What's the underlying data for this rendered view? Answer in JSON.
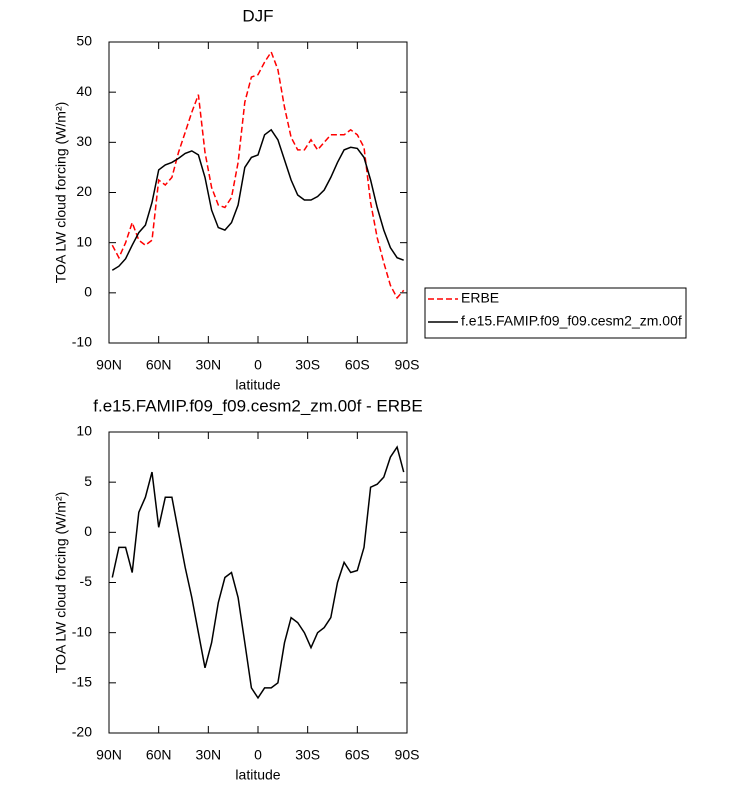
{
  "chart_data": [
    {
      "type": "line",
      "title": "DJF",
      "xlabel": "latitude",
      "ylabel": "TOA LW cloud forcing (W/m²)",
      "x": [
        88,
        84,
        80,
        76,
        72,
        68,
        64,
        60,
        56,
        52,
        48,
        44,
        40,
        36,
        32,
        28,
        24,
        20,
        16,
        12,
        8,
        4,
        0,
        -4,
        -8,
        -12,
        -16,
        -20,
        -24,
        -28,
        -32,
        -36,
        -40,
        -44,
        -48,
        -52,
        -56,
        -60,
        -64,
        -68,
        -72,
        -76,
        -80,
        -84,
        -88
      ],
      "xlim": [
        90,
        -90
      ],
      "xticks": [
        {
          "value": 90,
          "label": "90N"
        },
        {
          "value": 60,
          "label": "60N"
        },
        {
          "value": 30,
          "label": "30N"
        },
        0,
        {
          "value": -30,
          "label": "30S"
        },
        {
          "value": -60,
          "label": "60S"
        },
        {
          "value": -90,
          "label": "90S"
        }
      ],
      "ylim": [
        -10,
        50
      ],
      "yticks": [
        -10,
        0,
        10,
        20,
        30,
        40,
        50
      ],
      "legend": "outside right",
      "series": [
        {
          "name": "ERBE",
          "color": "#ff0000",
          "linestyle": "dashed",
          "values": [
            9.5,
            7,
            10,
            14,
            10.5,
            9.5,
            10.5,
            22.5,
            21.5,
            23,
            28,
            32,
            36,
            39.5,
            28,
            21,
            17.5,
            17,
            19,
            26,
            38,
            43,
            43.5,
            46,
            48,
            44.5,
            37,
            31,
            28.5,
            28.5,
            30.5,
            28.5,
            30,
            31.5,
            31.5,
            31.5,
            32.5,
            31.5,
            29,
            18,
            11,
            6,
            1.5,
            -1,
            0.5
          ]
        },
        {
          "name": "f.e15.FAMIP.f09_f09.cesm2_zm.00f",
          "color": "#000000",
          "linestyle": "solid",
          "values": [
            4.5,
            5.3,
            6.8,
            9.5,
            12,
            13.5,
            18,
            24.5,
            25.5,
            26,
            26.8,
            27.8,
            28.3,
            27.5,
            23,
            16.5,
            13,
            12.5,
            14,
            17.5,
            25,
            27,
            27.5,
            31.5,
            32.5,
            30.5,
            26.5,
            22.5,
            19.5,
            18.5,
            18.5,
            19.2,
            20.5,
            23,
            26,
            28.5,
            29,
            28.8,
            27,
            22.5,
            17,
            12.5,
            9,
            7,
            6.5
          ]
        }
      ]
    },
    {
      "type": "line",
      "title": "f.e15.FAMIP.f09_f09.cesm2_zm.00f - ERBE",
      "xlabel": "latitude",
      "ylabel": "TOA LW cloud forcing (W/m²)",
      "x": [
        88,
        84,
        80,
        76,
        72,
        68,
        64,
        60,
        56,
        52,
        48,
        44,
        40,
        36,
        32,
        28,
        24,
        20,
        16,
        12,
        8,
        4,
        0,
        -4,
        -8,
        -12,
        -16,
        -20,
        -24,
        -28,
        -32,
        -36,
        -40,
        -44,
        -48,
        -52,
        -56,
        -60,
        -64,
        -68,
        -72,
        -76,
        -80,
        -84,
        -88
      ],
      "xlim": [
        90,
        -90
      ],
      "xticks": [
        {
          "value": 90,
          "label": "90N"
        },
        {
          "value": 60,
          "label": "60N"
        },
        {
          "value": 30,
          "label": "30N"
        },
        0,
        {
          "value": -30,
          "label": "30S"
        },
        {
          "value": -60,
          "label": "60S"
        },
        {
          "value": -90,
          "label": "90S"
        }
      ],
      "ylim": [
        -20,
        10
      ],
      "yticks": [
        -20,
        -15,
        -10,
        -5,
        0,
        5,
        10
      ],
      "series": [
        {
          "color": "#000000",
          "linestyle": "solid",
          "values": [
            -4.5,
            -1.5,
            -1.5,
            -4,
            2,
            3.5,
            6,
            0.5,
            3.5,
            3.5,
            0,
            -3.5,
            -6.5,
            -10,
            -13.5,
            -11,
            -7,
            -4.5,
            -4,
            -6.5,
            -11,
            -15.5,
            -16.5,
            -15.5,
            -15.5,
            -15,
            -11,
            -8.5,
            -9,
            -10,
            -11.5,
            -10,
            -9.5,
            -8.5,
            -5,
            -3,
            -4,
            -3.8,
            -1.5,
            4.5,
            4.8,
            5.5,
            7.5,
            8.5,
            6
          ]
        }
      ]
    }
  ]
}
